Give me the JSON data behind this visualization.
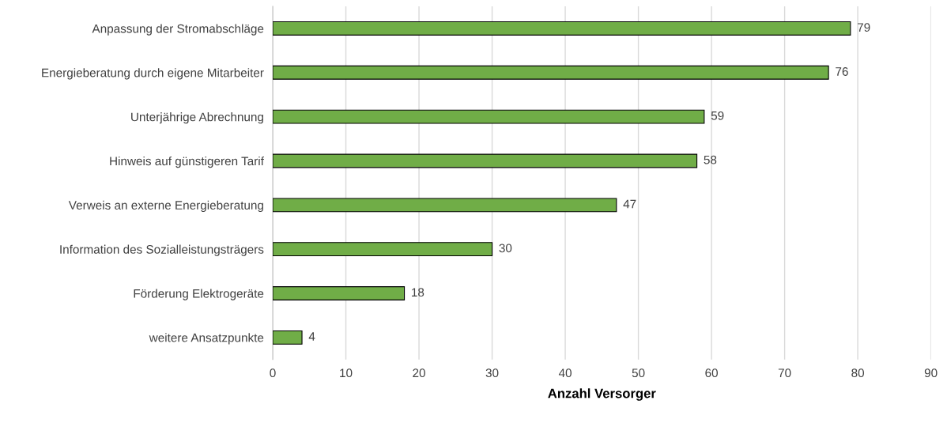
{
  "chart_data": {
    "type": "bar",
    "orientation": "horizontal",
    "xlabel": "Anzahl Versorger",
    "categories": [
      "Anpassung der Stromabschläge",
      "Energieberatung durch eigene Mitarbeiter",
      "Unterjährige Abrechnung",
      "Hinweis auf günstigeren Tarif",
      "Verweis an externe Energieberatung",
      "Information des Sozialleistungsträgers",
      "Förderung Elektrogeräte",
      "weitere Ansatzpunkte"
    ],
    "values": [
      79,
      76,
      59,
      58,
      47,
      30,
      18,
      4
    ],
    "color": "#70ad47",
    "xlim": [
      0,
      90
    ],
    "xticks": [
      0,
      10,
      20,
      30,
      40,
      50,
      60,
      70,
      80,
      90
    ],
    "grid": "x",
    "data_labels": true
  }
}
